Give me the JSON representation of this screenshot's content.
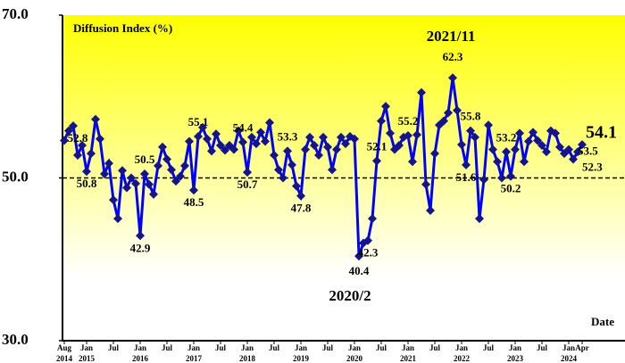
{
  "chart_data": {
    "type": "line",
    "title": "Diffusion Index (%)",
    "x_label": "Date",
    "annotations": [
      "2021/11",
      "2020/2"
    ],
    "x": [
      "2014-08",
      "2014-09",
      "2014-10",
      "2014-11",
      "2014-12",
      "2015-01",
      "2015-02",
      "2015-03",
      "2015-04",
      "2015-05",
      "2015-06",
      "2015-07",
      "2015-08",
      "2015-09",
      "2015-10",
      "2015-11",
      "2015-12",
      "2016-01",
      "2016-02",
      "2016-03",
      "2016-04",
      "2016-05",
      "2016-06",
      "2016-07",
      "2016-08",
      "2016-09",
      "2016-10",
      "2016-11",
      "2016-12",
      "2017-01",
      "2017-02",
      "2017-03",
      "2017-04",
      "2017-05",
      "2017-06",
      "2017-07",
      "2017-08",
      "2017-09",
      "2017-10",
      "2017-11",
      "2017-12",
      "2018-01",
      "2018-02",
      "2018-03",
      "2018-04",
      "2018-05",
      "2018-06",
      "2018-07",
      "2018-08",
      "2018-09",
      "2018-10",
      "2018-11",
      "2018-12",
      "2019-01",
      "2019-02",
      "2019-03",
      "2019-04",
      "2019-05",
      "2019-06",
      "2019-07",
      "2019-08",
      "2019-09",
      "2019-10",
      "2019-11",
      "2019-12",
      "2020-01",
      "2020-02",
      "2020-03",
      "2020-04",
      "2020-05",
      "2020-06",
      "2020-07",
      "2020-08",
      "2020-09",
      "2020-10",
      "2020-11",
      "2020-12",
      "2021-01",
      "2021-02",
      "2021-03",
      "2021-04",
      "2021-05",
      "2021-06",
      "2021-07",
      "2021-08",
      "2021-09",
      "2021-10",
      "2021-11",
      "2021-12",
      "2022-01",
      "2022-02",
      "2022-03",
      "2022-04",
      "2022-05",
      "2022-06",
      "2022-07",
      "2022-08",
      "2022-09",
      "2022-10",
      "2022-11",
      "2022-12",
      "2023-01",
      "2023-02",
      "2023-03",
      "2023-04",
      "2023-05",
      "2023-06",
      "2023-07",
      "2023-08",
      "2023-09",
      "2023-10",
      "2023-11",
      "2023-12",
      "2024-01",
      "2024-02",
      "2024-03",
      "2024-04"
    ],
    "values": [
      54.6,
      55.8,
      56.4,
      52.8,
      54.0,
      50.8,
      53.0,
      57.2,
      54.8,
      50.5,
      51.8,
      47.3,
      45.0,
      50.9,
      48.8,
      50.0,
      49.3,
      42.9,
      50.5,
      49.2,
      48.0,
      51.5,
      53.8,
      52.3,
      51.0,
      49.6,
      50.2,
      51.5,
      54.5,
      48.5,
      55.1,
      56.2,
      54.8,
      53.3,
      55.4,
      54.0,
      53.4,
      54.0,
      53.5,
      55.8,
      54.4,
      50.7,
      55.0,
      54.2,
      55.6,
      54.5,
      56.8,
      52.8,
      51.0,
      50.0,
      53.3,
      51.6,
      49.0,
      47.8,
      53.5,
      55.0,
      54.0,
      52.8,
      55.0,
      53.8,
      51.0,
      53.5,
      55.0,
      54.2,
      55.1,
      54.8,
      40.4,
      42.0,
      42.3,
      45.0,
      52.1,
      57.0,
      58.8,
      55.5,
      53.5,
      54.0,
      55.0,
      55.2,
      52.0,
      55.3,
      60.5,
      49.2,
      46.0,
      53.0,
      56.5,
      57.0,
      58.0,
      62.3,
      58.3,
      54.1,
      51.6,
      55.8,
      55.0,
      45.0,
      49.8,
      56.5,
      53.5,
      52.0,
      50.0,
      53.2,
      50.2,
      53.5,
      55.5,
      52.0,
      54.5,
      55.6,
      54.6,
      54.0,
      53.2,
      55.8,
      55.5,
      53.8,
      53.0,
      53.5,
      52.3,
      53.2,
      54.1
    ],
    "value_labels": [
      null,
      null,
      null,
      "52.8",
      null,
      "50.8",
      null,
      null,
      null,
      null,
      null,
      null,
      null,
      null,
      null,
      null,
      null,
      "42.9",
      "50.5",
      null,
      null,
      null,
      null,
      null,
      null,
      null,
      null,
      null,
      null,
      "48.5",
      "55.1",
      null,
      null,
      null,
      null,
      null,
      null,
      null,
      null,
      null,
      "54.4",
      "50.7",
      null,
      null,
      null,
      null,
      null,
      null,
      null,
      null,
      "53.3",
      null,
      null,
      "47.8",
      null,
      null,
      null,
      null,
      null,
      null,
      null,
      null,
      null,
      null,
      null,
      null,
      "40.4",
      null,
      "42.3",
      null,
      "52.1",
      null,
      null,
      null,
      null,
      null,
      null,
      "55.2",
      null,
      null,
      null,
      null,
      null,
      null,
      null,
      null,
      null,
      "62.3",
      null,
      null,
      "51.6",
      "55.8",
      null,
      null,
      null,
      null,
      null,
      null,
      null,
      "53.2",
      "50.2",
      null,
      null,
      null,
      null,
      null,
      null,
      null,
      null,
      null,
      null,
      null,
      null,
      "53.5",
      "52.3",
      null,
      "54.1"
    ],
    "color": "#0000ff",
    "marker_color": "#14148c",
    "ylim": [
      30,
      70
    ],
    "yticks": [
      {
        "value": 30,
        "label": "30.0"
      },
      {
        "value": 50,
        "label": "50.0"
      },
      {
        "value": 70,
        "label": "70.0"
      }
    ],
    "reference_line": 50,
    "xticks": [
      {
        "value": "2014-08",
        "label": "Aug 2014"
      },
      {
        "value": "2015-01",
        "label": "Jan 2015"
      },
      {
        "value": "2015-07",
        "label": "Jul"
      },
      {
        "value": "2016-01",
        "label": "Jan 2016"
      },
      {
        "value": "2016-07",
        "label": "Jul"
      },
      {
        "value": "2017-01",
        "label": "Jan 2017"
      },
      {
        "value": "2017-07",
        "label": "Jul"
      },
      {
        "value": "2018-01",
        "label": "Jan 2018"
      },
      {
        "value": "2018-07",
        "label": "Jul"
      },
      {
        "value": "2019-01",
        "label": "Jan 2019"
      },
      {
        "value": "2019-07",
        "label": "Jul"
      },
      {
        "value": "2020-01",
        "label": "Jan 2020"
      },
      {
        "value": "2020-07",
        "label": "Jul"
      },
      {
        "value": "2021-01",
        "label": "Jan 2021"
      },
      {
        "value": "2021-07",
        "label": "Jul"
      },
      {
        "value": "2022-01",
        "label": "Jan 2022"
      },
      {
        "value": "2022-07",
        "label": "Jul"
      },
      {
        "value": "2023-01",
        "label": "Jan 2023"
      },
      {
        "value": "2023-07",
        "label": "Jul"
      },
      {
        "value": "2024-01",
        "label": "Jan 2024"
      },
      {
        "value": "2024-04",
        "label": "Apr"
      }
    ]
  }
}
